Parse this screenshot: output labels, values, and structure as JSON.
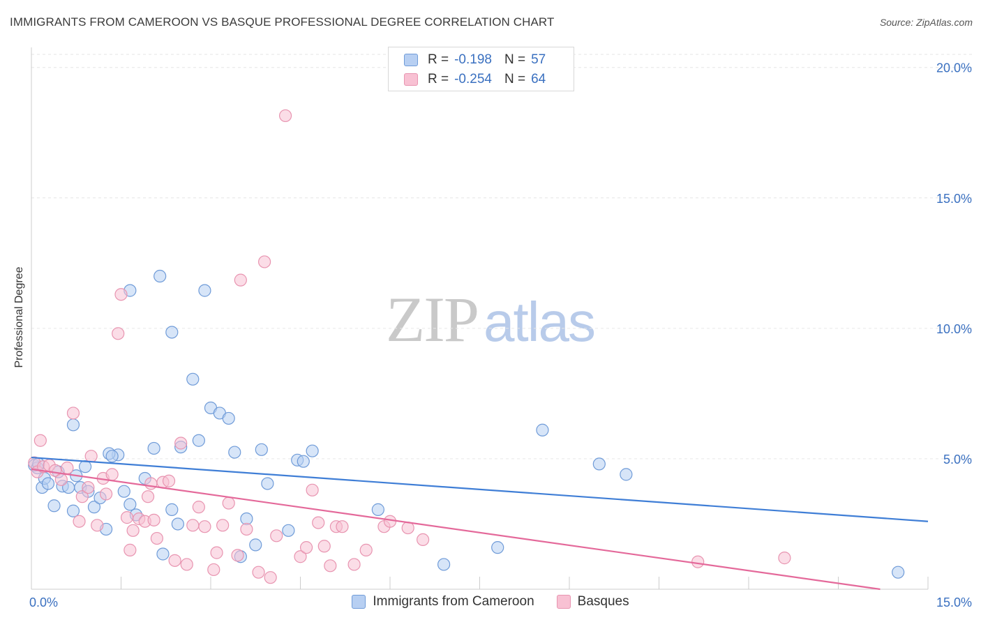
{
  "title": "IMMIGRANTS FROM CAMEROON VS BASQUE PROFESSIONAL DEGREE CORRELATION CHART",
  "source": "Source: ZipAtlas.com",
  "watermark": {
    "zip": "ZIP",
    "atlas": "atlas"
  },
  "legend_top": [
    {
      "r_label": "R =",
      "r_value": "-0.198",
      "n_label": "N =",
      "n_value": "57"
    },
    {
      "r_label": "R =",
      "r_value": "-0.254",
      "n_label": "N =",
      "n_value": "64"
    }
  ],
  "colors": {
    "blue_fill": "#b7cff2",
    "blue_stroke": "#6f9bd8",
    "blue_line": "#3f7ed6",
    "pink_fill": "#f8c1d3",
    "pink_stroke": "#e894b0",
    "pink_line": "#e4699a",
    "grid": "#e6e6e6",
    "tick_label": "#3a70c0"
  },
  "chart_data": {
    "type": "scatter",
    "title": "IMMIGRANTS FROM CAMEROON VS BASQUE PROFESSIONAL DEGREE CORRELATION CHART",
    "xlabel": "",
    "ylabel": "Professional Degree",
    "xlim": [
      0,
      15
    ],
    "ylim": [
      0,
      20.5
    ],
    "x_ticks": [
      0,
      15
    ],
    "x_tick_labels": [
      "0.0%",
      "15.0%"
    ],
    "y_ticks": [
      5,
      10,
      15,
      20
    ],
    "y_tick_labels": [
      "5.0%",
      "10.0%",
      "15.0%",
      "20.0%"
    ],
    "grid": true,
    "legend_position": "bottom",
    "series": [
      {
        "name": "Immigrants from Cameroon",
        "color": "#6f9bd8",
        "trend": {
          "x": [
            0,
            15
          ],
          "y": [
            5.05,
            2.6
          ]
        },
        "points": [
          [
            0.05,
            4.75
          ],
          [
            0.1,
            4.65
          ],
          [
            0.12,
            4.8
          ],
          [
            0.18,
            3.9
          ],
          [
            0.22,
            4.25
          ],
          [
            0.28,
            4.05
          ],
          [
            0.38,
            3.2
          ],
          [
            0.45,
            4.5
          ],
          [
            0.52,
            3.95
          ],
          [
            0.62,
            3.9
          ],
          [
            0.7,
            3.0
          ],
          [
            0.75,
            4.35
          ],
          [
            0.82,
            3.9
          ],
          [
            0.95,
            3.75
          ],
          [
            1.05,
            3.15
          ],
          [
            1.15,
            3.5
          ],
          [
            1.25,
            2.3
          ],
          [
            1.45,
            5.15
          ],
          [
            1.55,
            3.75
          ],
          [
            1.65,
            3.25
          ],
          [
            1.75,
            2.85
          ],
          [
            1.9,
            4.25
          ],
          [
            2.05,
            5.4
          ],
          [
            2.2,
            1.35
          ],
          [
            2.35,
            3.05
          ],
          [
            2.45,
            2.5
          ],
          [
            2.5,
            5.45
          ],
          [
            0.7,
            6.3
          ],
          [
            1.65,
            11.45
          ],
          [
            2.15,
            12.0
          ],
          [
            2.35,
            9.85
          ],
          [
            2.7,
            8.05
          ],
          [
            2.9,
            11.45
          ],
          [
            3.0,
            6.95
          ],
          [
            3.15,
            6.75
          ],
          [
            3.3,
            6.55
          ],
          [
            3.4,
            5.25
          ],
          [
            3.5,
            1.25
          ],
          [
            3.6,
            2.7
          ],
          [
            3.75,
            1.7
          ],
          [
            3.85,
            5.35
          ],
          [
            3.95,
            4.05
          ],
          [
            4.3,
            2.25
          ],
          [
            4.45,
            4.95
          ],
          [
            4.55,
            4.9
          ],
          [
            4.7,
            5.3
          ],
          [
            5.8,
            3.05
          ],
          [
            6.9,
            0.95
          ],
          [
            7.8,
            1.6
          ],
          [
            8.55,
            6.1
          ],
          [
            9.5,
            4.8
          ],
          [
            9.95,
            4.4
          ],
          [
            14.5,
            0.65
          ],
          [
            1.3,
            5.2
          ],
          [
            2.8,
            5.7
          ],
          [
            1.35,
            5.1
          ],
          [
            0.9,
            4.7
          ]
        ]
      },
      {
        "name": "Basques",
        "color": "#e894b0",
        "trend": {
          "x": [
            0,
            14.2
          ],
          "y": [
            4.6,
            0.0
          ]
        },
        "points": [
          [
            0.05,
            4.85
          ],
          [
            0.1,
            4.5
          ],
          [
            0.15,
            5.7
          ],
          [
            0.2,
            4.7
          ],
          [
            0.3,
            4.75
          ],
          [
            0.4,
            4.55
          ],
          [
            0.5,
            4.2
          ],
          [
            0.6,
            4.65
          ],
          [
            0.7,
            6.75
          ],
          [
            0.8,
            2.6
          ],
          [
            0.85,
            3.55
          ],
          [
            0.95,
            3.9
          ],
          [
            1.0,
            5.1
          ],
          [
            1.1,
            2.45
          ],
          [
            1.2,
            4.25
          ],
          [
            1.25,
            3.65
          ],
          [
            1.35,
            4.4
          ],
          [
            1.45,
            9.8
          ],
          [
            1.5,
            11.3
          ],
          [
            1.6,
            2.75
          ],
          [
            1.7,
            2.25
          ],
          [
            1.8,
            2.7
          ],
          [
            1.9,
            2.6
          ],
          [
            1.95,
            3.55
          ],
          [
            2.05,
            2.65
          ],
          [
            2.1,
            1.95
          ],
          [
            2.2,
            4.1
          ],
          [
            2.3,
            4.15
          ],
          [
            2.4,
            1.1
          ],
          [
            2.5,
            5.6
          ],
          [
            2.6,
            0.95
          ],
          [
            2.7,
            2.45
          ],
          [
            2.8,
            3.15
          ],
          [
            2.9,
            2.4
          ],
          [
            3.05,
            0.75
          ],
          [
            3.1,
            1.4
          ],
          [
            3.2,
            2.45
          ],
          [
            3.3,
            3.3
          ],
          [
            3.5,
            11.85
          ],
          [
            3.6,
            2.3
          ],
          [
            3.8,
            0.65
          ],
          [
            3.9,
            12.55
          ],
          [
            4.0,
            0.45
          ],
          [
            4.1,
            2.05
          ],
          [
            4.25,
            18.15
          ],
          [
            4.5,
            1.25
          ],
          [
            4.6,
            1.6
          ],
          [
            4.7,
            3.8
          ],
          [
            4.8,
            2.55
          ],
          [
            4.9,
            1.65
          ],
          [
            5.0,
            0.9
          ],
          [
            5.1,
            2.4
          ],
          [
            5.2,
            2.4
          ],
          [
            5.4,
            0.95
          ],
          [
            5.6,
            1.5
          ],
          [
            5.9,
            2.4
          ],
          [
            6.0,
            2.6
          ],
          [
            6.3,
            2.35
          ],
          [
            6.55,
            1.9
          ],
          [
            11.15,
            1.05
          ],
          [
            12.6,
            1.2
          ],
          [
            1.65,
            1.5
          ],
          [
            2.0,
            4.05
          ],
          [
            3.45,
            1.3
          ]
        ]
      }
    ]
  }
}
